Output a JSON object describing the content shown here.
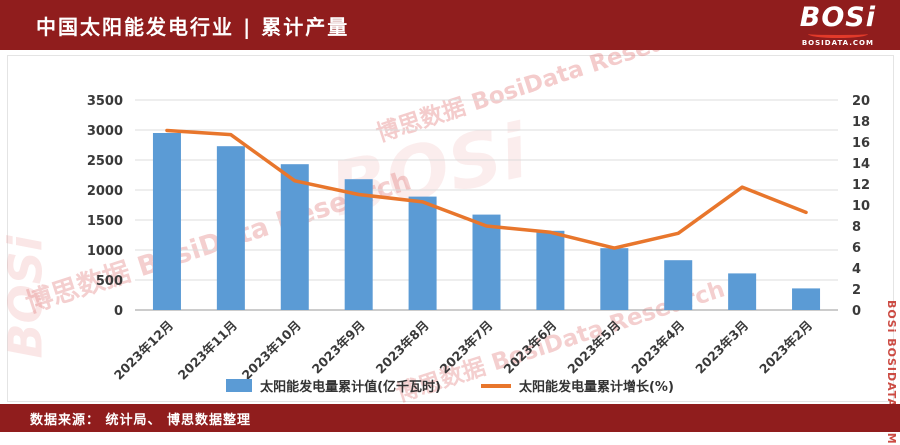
{
  "header": {
    "title": "中国太阳能发电行业 | 累计产量",
    "logo_text": "BOSi",
    "logo_sub": "BOSIDATA.COM"
  },
  "footer": {
    "source": "数据来源： 统计局、 博思数据整理"
  },
  "watermark": {
    "full": "博思数据 BosiData Research",
    "cn": "博思数据",
    "logo": "BOSi",
    "site": "BOSIDATA.COM",
    "side": "BOSi BOSIDATA.COM"
  },
  "chart_data": {
    "type": "bar+line",
    "title": "中国太阳能发电行业 | 累计产量",
    "categories": [
      "2023年12月",
      "2023年11月",
      "2023年10月",
      "2023年9月",
      "2023年8月",
      "2023年7月",
      "2023年6月",
      "2023年5月",
      "2023年4月",
      "2023年3月",
      "2023年2月"
    ],
    "series": [
      {
        "name": "太阳能发电量累计值(亿千瓦时)",
        "type": "bar",
        "axis": "left",
        "color": "#5b9bd5",
        "values": [
          2950,
          2730,
          2430,
          2180,
          1890,
          1590,
          1320,
          1030,
          830,
          610,
          360
        ]
      },
      {
        "name": "太阳能发电量累计增长(%)",
        "type": "line",
        "axis": "right",
        "color": "#e8762c",
        "values": [
          17.1,
          16.7,
          12.3,
          11.0,
          10.3,
          8.0,
          7.4,
          5.9,
          7.3,
          11.7,
          9.3
        ]
      }
    ],
    "left_axis": {
      "min": 0,
      "max": 3500,
      "step": 500
    },
    "right_axis": {
      "min": 0,
      "max": 20,
      "step": 2
    },
    "grid": true,
    "legend_position": "bottom"
  }
}
